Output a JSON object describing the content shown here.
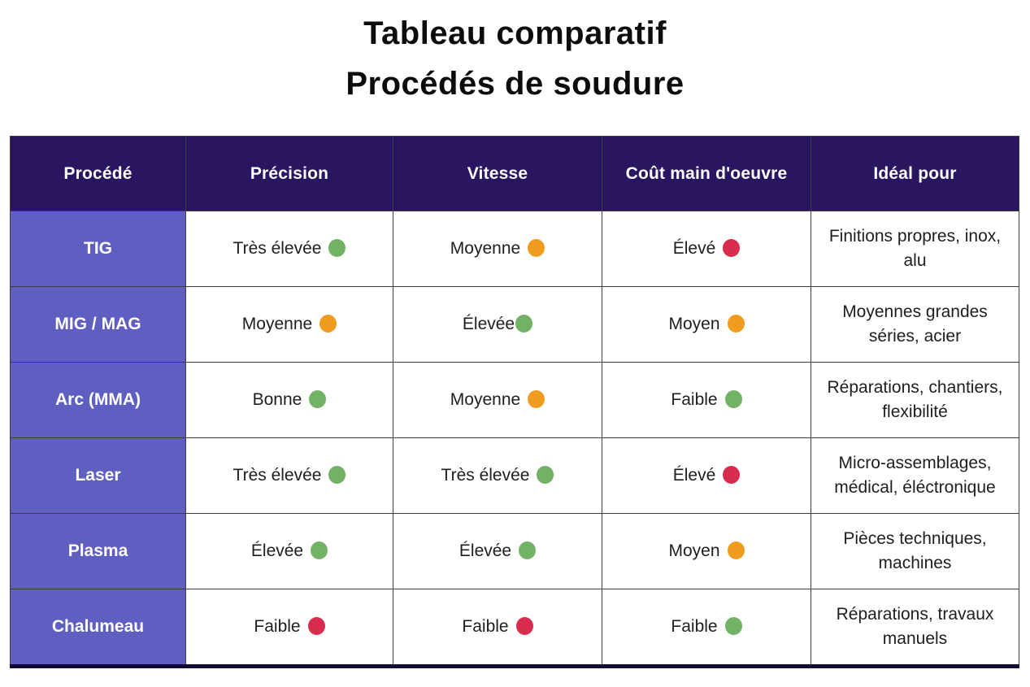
{
  "title": {
    "line1": "Tableau comparatif",
    "line2": "Procédés de soudure"
  },
  "colors": {
    "header_bg": "#2a1560",
    "row_label_bg": "#5f5ec1",
    "green": "#72b264",
    "orange": "#f09d1f",
    "red": "#d92b4b"
  },
  "chart_data": {
    "type": "table",
    "title": "Tableau comparatif — Procédés de soudure",
    "columns": [
      "Procédé",
      "Précision",
      "Vitesse",
      "Coût main d'oeuvre",
      "Idéal pour"
    ],
    "rows": [
      {
        "name": "TIG",
        "precision": {
          "text": "Très élevée",
          "dot": "green"
        },
        "vitesse": {
          "text": "Moyenne",
          "dot": "orange"
        },
        "cout": {
          "text": "Élevé",
          "dot": "red"
        },
        "ideal": "Finitions propres, inox, alu"
      },
      {
        "name": "MIG / MAG",
        "precision": {
          "text": "Moyenne",
          "dot": "orange"
        },
        "vitesse": {
          "text": "Élevée",
          "dot": "green",
          "tight": true
        },
        "cout": {
          "text": "Moyen",
          "dot": "orange"
        },
        "ideal": "Moyennes grandes séries, acier"
      },
      {
        "name": "Arc (MMA)",
        "precision": {
          "text": "Bonne",
          "dot": "green"
        },
        "vitesse": {
          "text": "Moyenne",
          "dot": "orange"
        },
        "cout": {
          "text": "Faible",
          "dot": "green"
        },
        "ideal": "Réparations, chantiers, flexibilité"
      },
      {
        "name": "Laser",
        "precision": {
          "text": "Très élevée",
          "dot": "green"
        },
        "vitesse": {
          "text": "Très élevée",
          "dot": "green"
        },
        "cout": {
          "text": "Élevé",
          "dot": "red"
        },
        "ideal": "Micro-assemblages, médical, éléctronique"
      },
      {
        "name": "Plasma",
        "precision": {
          "text": "Élevée",
          "dot": "green"
        },
        "vitesse": {
          "text": "Élevée",
          "dot": "green"
        },
        "cout": {
          "text": "Moyen",
          "dot": "orange"
        },
        "ideal": "Pièces techniques, machines"
      },
      {
        "name": "Chalumeau",
        "precision": {
          "text": "Faible",
          "dot": "red"
        },
        "vitesse": {
          "text": "Faible",
          "dot": "red"
        },
        "cout": {
          "text": "Faible",
          "dot": "green"
        },
        "ideal": "Réparations, travaux manuels"
      }
    ]
  }
}
